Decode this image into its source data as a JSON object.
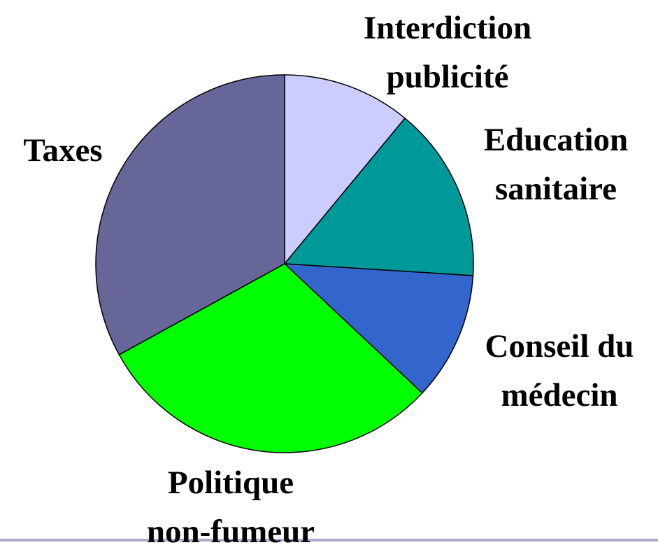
{
  "chart_data": {
    "type": "pie",
    "categories": [
      "Interdiction publicité",
      "Education sanitaire",
      "Conseil du médecin",
      "Politique non-fumeur",
      "Taxes"
    ],
    "values": [
      11,
      15,
      11,
      30,
      33
    ],
    "colors": [
      "#ccccff",
      "#009999",
      "#3366cc",
      "#00ff00",
      "#666699"
    ]
  }
}
